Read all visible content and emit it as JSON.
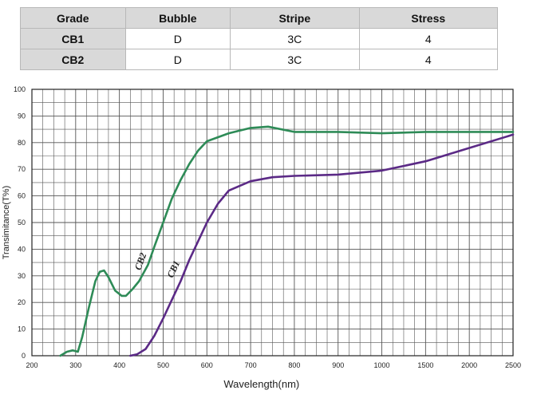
{
  "table": {
    "headers": [
      "Grade",
      "Bubble",
      "Stripe",
      "Stress"
    ],
    "rows": [
      [
        "CB1",
        "D",
        "3C",
        "4"
      ],
      [
        "CB2",
        "D",
        "3C",
        "4"
      ]
    ]
  },
  "chart_data": {
    "type": "line",
    "xlabel": "Wavelength(nm)",
    "ylabel": "Transimitance(T%)",
    "x_ticks": [
      200,
      300,
      400,
      500,
      600,
      700,
      800,
      900,
      1000,
      1500,
      2000,
      2500
    ],
    "y_ticks": [
      0,
      10,
      20,
      30,
      40,
      50,
      60,
      70,
      80,
      90,
      100
    ],
    "ylim": [
      0,
      100
    ],
    "grid": true,
    "series": [
      {
        "name": "CB2",
        "color": "#2e8b57",
        "points": [
          [
            265,
            0
          ],
          [
            280,
            1.5
          ],
          [
            293,
            2
          ],
          [
            305,
            1.5
          ],
          [
            315,
            7
          ],
          [
            330,
            18
          ],
          [
            345,
            28
          ],
          [
            355,
            31.5
          ],
          [
            365,
            32
          ],
          [
            375,
            29.5
          ],
          [
            390,
            24.5
          ],
          [
            405,
            22.5
          ],
          [
            415,
            22.5
          ],
          [
            430,
            25
          ],
          [
            445,
            28
          ],
          [
            465,
            34
          ],
          [
            480,
            41
          ],
          [
            500,
            50
          ],
          [
            520,
            59
          ],
          [
            540,
            66
          ],
          [
            560,
            72
          ],
          [
            580,
            77
          ],
          [
            600,
            80.5
          ],
          [
            650,
            83.5
          ],
          [
            700,
            85.5
          ],
          [
            740,
            86
          ],
          [
            800,
            84
          ],
          [
            900,
            84
          ],
          [
            1000,
            83.5
          ],
          [
            1500,
            84
          ],
          [
            2500,
            84
          ]
        ]
      },
      {
        "name": "CB1",
        "color": "#5b2a86",
        "points": [
          [
            425,
            0
          ],
          [
            440,
            0.5
          ],
          [
            460,
            2.5
          ],
          [
            480,
            7.5
          ],
          [
            500,
            14
          ],
          [
            520,
            21
          ],
          [
            540,
            28
          ],
          [
            560,
            36
          ],
          [
            580,
            43
          ],
          [
            600,
            50
          ],
          [
            625,
            57
          ],
          [
            650,
            62
          ],
          [
            700,
            65.5
          ],
          [
            750,
            67
          ],
          [
            800,
            67.5
          ],
          [
            900,
            68
          ],
          [
            1000,
            69.5
          ],
          [
            1500,
            73
          ],
          [
            2000,
            78
          ],
          [
            2500,
            83
          ]
        ]
      }
    ]
  }
}
